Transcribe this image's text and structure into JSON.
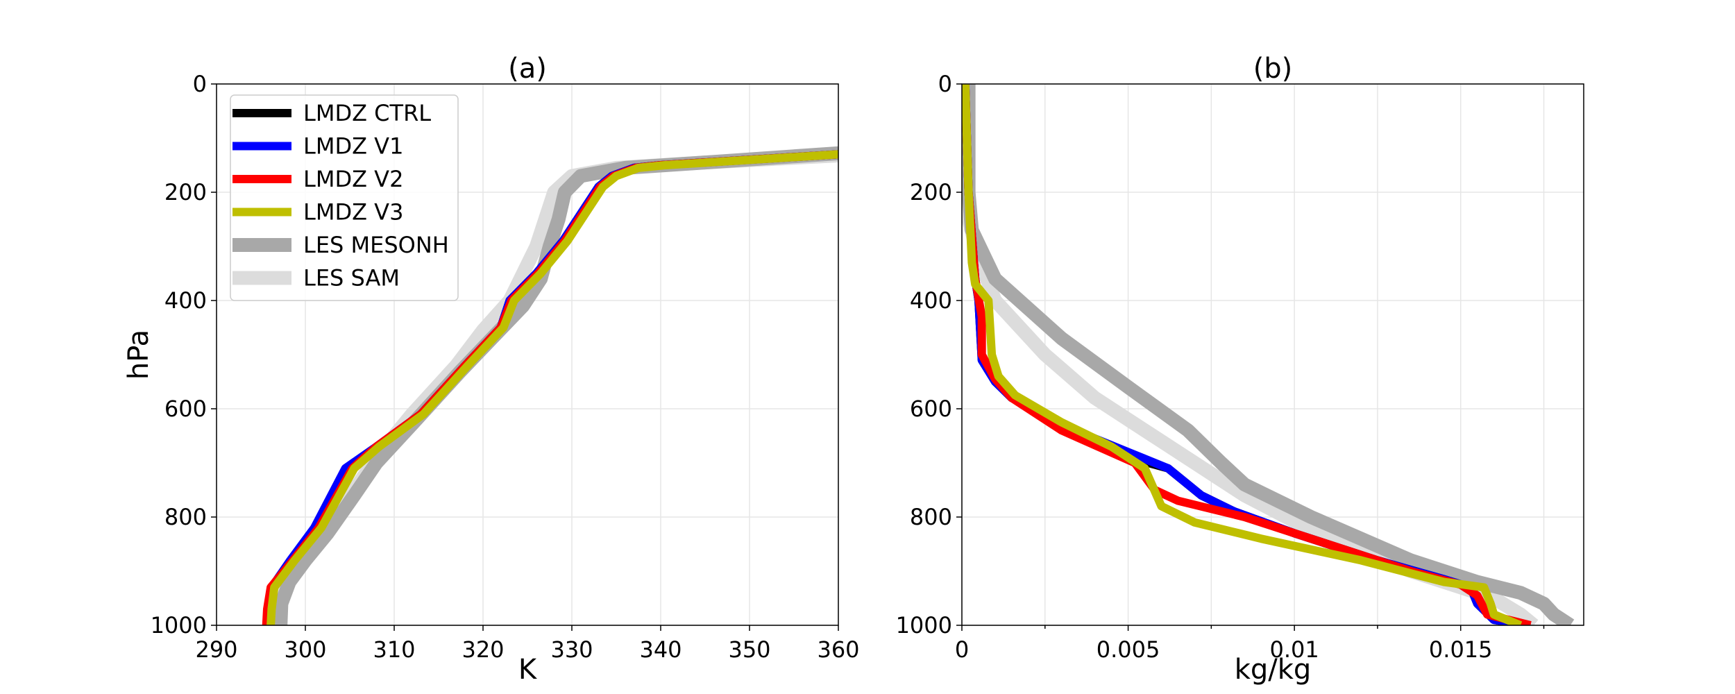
{
  "chart_data": [
    {
      "type": "line",
      "title": "(a)",
      "xlabel": "K",
      "ylabel": "hPa",
      "xlim": [
        290,
        360
      ],
      "ylim": [
        1000,
        0
      ],
      "y_inverted": true,
      "xticks": [
        290,
        300,
        310,
        320,
        330,
        340,
        350,
        360
      ],
      "xtick_labels": [
        "290",
        "300",
        "310",
        "320",
        "330",
        "340",
        "350",
        "360"
      ],
      "yticks": [
        0,
        200,
        400,
        600,
        800,
        1000
      ],
      "ytick_labels": [
        "0",
        "200",
        "400",
        "600",
        "800",
        "1000"
      ],
      "grid": true,
      "legend": {
        "position": "upper-left",
        "entries": [
          "LMDZ CTRL",
          "LMDZ V1",
          "LMDZ V2",
          "LMDZ V3",
          "LES MESONH",
          "LES SAM"
        ]
      },
      "series": [
        {
          "name": "LES SAM",
          "color": "#dcdcdc",
          "width": "wide",
          "points": [
            [
              296.8,
              1000
            ],
            [
              296.9,
              960
            ],
            [
              297.5,
              920
            ],
            [
              299.5,
              880
            ],
            [
              302,
              830
            ],
            [
              305.5,
              750
            ],
            [
              308,
              690
            ],
            [
              312,
              610
            ],
            [
              317,
              520
            ],
            [
              320,
              455
            ],
            [
              323,
              400
            ],
            [
              324.5,
              350
            ],
            [
              326,
              300
            ],
            [
              327,
              250
            ],
            [
              328,
              200
            ],
            [
              330,
              170
            ],
            [
              335,
              155
            ],
            [
              345,
              145
            ],
            [
              360,
              132
            ]
          ]
        },
        {
          "name": "LES MESONH",
          "color": "#a8a8a8",
          "width": "wide",
          "points": [
            [
              297.2,
              1000
            ],
            [
              297.3,
              960
            ],
            [
              298.2,
              920
            ],
            [
              300,
              880
            ],
            [
              302.5,
              830
            ],
            [
              305.5,
              760
            ],
            [
              308,
              700
            ],
            [
              312.5,
              620
            ],
            [
              317.5,
              530
            ],
            [
              321,
              470
            ],
            [
              324.5,
              410
            ],
            [
              326.5,
              360
            ],
            [
              327.5,
              300
            ],
            [
              328.5,
              250
            ],
            [
              329.2,
              200
            ],
            [
              331,
              170
            ],
            [
              336,
              155
            ],
            [
              345,
              145
            ],
            [
              360,
              128
            ]
          ]
        },
        {
          "name": "LMDZ CTRL",
          "color": "#000000",
          "width": "normal",
          "points": [
            [
              295.8,
              1000
            ],
            [
              295.9,
              970
            ],
            [
              296.2,
              930
            ],
            [
              298.5,
              880
            ],
            [
              301.5,
              820
            ],
            [
              305,
              710
            ],
            [
              308,
              670
            ],
            [
              313,
              610
            ],
            [
              318,
              520
            ],
            [
              322,
              450
            ],
            [
              323,
              400
            ],
            [
              326,
              350
            ],
            [
              329,
              290
            ],
            [
              331,
              240
            ],
            [
              333,
              190
            ],
            [
              334.5,
              170
            ],
            [
              337,
              155
            ],
            [
              340,
              150
            ],
            [
              360,
              130
            ]
          ]
        },
        {
          "name": "LMDZ V1",
          "color": "#0000ff",
          "width": "normal",
          "points": [
            [
              295.8,
              1000
            ],
            [
              295.9,
              970
            ],
            [
              296.2,
              930
            ],
            [
              298.3,
              880
            ],
            [
              301,
              820
            ],
            [
              304.5,
              710
            ],
            [
              308,
              670
            ],
            [
              313,
              610
            ],
            [
              318,
              520
            ],
            [
              322,
              450
            ],
            [
              323,
              400
            ],
            [
              326,
              350
            ],
            [
              329,
              290
            ],
            [
              331,
              240
            ],
            [
              333,
              190
            ],
            [
              334.5,
              170
            ],
            [
              337,
              155
            ],
            [
              340,
              150
            ],
            [
              360,
              130
            ]
          ]
        },
        {
          "name": "LMDZ V2",
          "color": "#ff0000",
          "width": "normal",
          "points": [
            [
              295.6,
              1000
            ],
            [
              295.7,
              970
            ],
            [
              296.1,
              930
            ],
            [
              298.6,
              880
            ],
            [
              301.5,
              820
            ],
            [
              305.3,
              710
            ],
            [
              308,
              670
            ],
            [
              313,
              610
            ],
            [
              318,
              520
            ],
            [
              322,
              450
            ],
            [
              323.2,
              400
            ],
            [
              326.2,
              350
            ],
            [
              329.2,
              290
            ],
            [
              331.2,
              240
            ],
            [
              333.2,
              190
            ],
            [
              334.7,
              170
            ],
            [
              337.2,
              155
            ],
            [
              340,
              150
            ],
            [
              360,
              130
            ]
          ]
        },
        {
          "name": "LMDZ V3",
          "color": "#bfbf00",
          "width": "normal",
          "points": [
            [
              296.1,
              1000
            ],
            [
              296.2,
              970
            ],
            [
              296.5,
              930
            ],
            [
              298.8,
              880
            ],
            [
              301.8,
              820
            ],
            [
              305.5,
              710
            ],
            [
              308.3,
              670
            ],
            [
              313.3,
              610
            ],
            [
              318.3,
              520
            ],
            [
              322.3,
              450
            ],
            [
              323.5,
              400
            ],
            [
              326.5,
              350
            ],
            [
              329.5,
              290
            ],
            [
              331.5,
              240
            ],
            [
              333.5,
              190
            ],
            [
              335,
              170
            ],
            [
              337.5,
              155
            ],
            [
              340.5,
              150
            ],
            [
              360,
              130
            ]
          ]
        }
      ]
    },
    {
      "type": "line",
      "title": "(b)",
      "xlabel": "kg/kg",
      "ylabel": "",
      "xlim": [
        0,
        0.0187
      ],
      "ylim": [
        1000,
        0
      ],
      "y_inverted": true,
      "xticks": [
        0,
        0.005,
        0.01,
        0.015
      ],
      "xtick_labels": [
        "0",
        "0.005",
        "0.01",
        "0.015"
      ],
      "xticks_minor": [
        0.0025,
        0.0075,
        0.0125,
        0.0175
      ],
      "yticks": [
        0,
        200,
        400,
        600,
        800,
        1000
      ],
      "ytick_labels": [
        "0",
        "200",
        "400",
        "600",
        "800",
        "1000"
      ],
      "grid": true,
      "series": [
        {
          "name": "LES SAM",
          "color": "#dcdcdc",
          "width": "wide",
          "points": [
            [
              0.0002,
              0
            ],
            [
              0.0002,
              250
            ],
            [
              0.0005,
              320
            ],
            [
              0.001,
              400
            ],
            [
              0.0025,
              500
            ],
            [
              0.004,
              580
            ],
            [
              0.006,
              660
            ],
            [
              0.0085,
              760
            ],
            [
              0.011,
              840
            ],
            [
              0.0135,
              900
            ],
            [
              0.015,
              930
            ],
            [
              0.016,
              950
            ],
            [
              0.0168,
              980
            ],
            [
              0.0172,
              1000
            ]
          ]
        },
        {
          "name": "LES MESONH",
          "color": "#a8a8a8",
          "width": "wide",
          "points": [
            [
              0.0002,
              0
            ],
            [
              0.0002,
              200
            ],
            [
              0.0003,
              270
            ],
            [
              0.001,
              360
            ],
            [
              0.003,
              470
            ],
            [
              0.005,
              560
            ],
            [
              0.0068,
              640
            ],
            [
              0.0078,
              700
            ],
            [
              0.0085,
              740
            ],
            [
              0.0105,
              800
            ],
            [
              0.0135,
              880
            ],
            [
              0.0155,
              920
            ],
            [
              0.0168,
              940
            ],
            [
              0.0175,
              960
            ],
            [
              0.0178,
              980
            ],
            [
              0.0183,
              1000
            ]
          ]
        },
        {
          "name": "LMDZ CTRL",
          "color": "#000000",
          "width": "normal",
          "points": [
            [
              0.0001,
              0
            ],
            [
              0.0002,
              200
            ],
            [
              0.0004,
              360
            ],
            [
              0.0005,
              400
            ],
            [
              0.0006,
              510
            ],
            [
              0.001,
              550
            ],
            [
              0.0015,
              580
            ],
            [
              0.003,
              630
            ],
            [
              0.005,
              690
            ],
            [
              0.0062,
              710
            ],
            [
              0.0072,
              760
            ],
            [
              0.0082,
              790
            ],
            [
              0.01,
              830
            ],
            [
              0.0125,
              880
            ],
            [
              0.0145,
              915
            ],
            [
              0.0153,
              930
            ],
            [
              0.0155,
              960
            ],
            [
              0.016,
              990
            ],
            [
              0.0171,
              1000
            ]
          ]
        },
        {
          "name": "LMDZ V1",
          "color": "#0000ff",
          "width": "normal",
          "points": [
            [
              0.0001,
              0
            ],
            [
              0.0002,
              200
            ],
            [
              0.0004,
              360
            ],
            [
              0.0005,
              400
            ],
            [
              0.0006,
              510
            ],
            [
              0.001,
              550
            ],
            [
              0.0015,
              580
            ],
            [
              0.003,
              630
            ],
            [
              0.005,
              680
            ],
            [
              0.0062,
              710
            ],
            [
              0.0072,
              760
            ],
            [
              0.0082,
              790
            ],
            [
              0.01,
              830
            ],
            [
              0.0125,
              880
            ],
            [
              0.0145,
              915
            ],
            [
              0.0153,
              930
            ],
            [
              0.0155,
              960
            ],
            [
              0.016,
              990
            ],
            [
              0.0171,
              1000
            ]
          ]
        },
        {
          "name": "LMDZ V2",
          "color": "#ff0000",
          "width": "normal",
          "points": [
            [
              0.0001,
              0
            ],
            [
              0.0002,
              200
            ],
            [
              0.0004,
              360
            ],
            [
              0.0006,
              430
            ],
            [
              0.0006,
              500
            ],
            [
              0.001,
              545
            ],
            [
              0.0015,
              580
            ],
            [
              0.003,
              640
            ],
            [
              0.0052,
              700
            ],
            [
              0.0058,
              750
            ],
            [
              0.0065,
              770
            ],
            [
              0.0085,
              800
            ],
            [
              0.011,
              850
            ],
            [
              0.0135,
              900
            ],
            [
              0.015,
              925
            ],
            [
              0.0155,
              945
            ],
            [
              0.0158,
              980
            ],
            [
              0.0171,
              1000
            ]
          ]
        },
        {
          "name": "LMDZ V3",
          "color": "#bfbf00",
          "width": "normal",
          "points": [
            [
              0.0001,
              0
            ],
            [
              0.0002,
              200
            ],
            [
              0.0003,
              330
            ],
            [
              0.0004,
              370
            ],
            [
              0.0008,
              400
            ],
            [
              0.0009,
              500
            ],
            [
              0.0011,
              540
            ],
            [
              0.0016,
              575
            ],
            [
              0.003,
              625
            ],
            [
              0.0045,
              670
            ],
            [
              0.0055,
              710
            ],
            [
              0.006,
              780
            ],
            [
              0.007,
              810
            ],
            [
              0.009,
              840
            ],
            [
              0.012,
              880
            ],
            [
              0.0145,
              920
            ],
            [
              0.0157,
              930
            ],
            [
              0.0159,
              960
            ],
            [
              0.016,
              980
            ],
            [
              0.0168,
              1000
            ]
          ]
        }
      ]
    }
  ]
}
